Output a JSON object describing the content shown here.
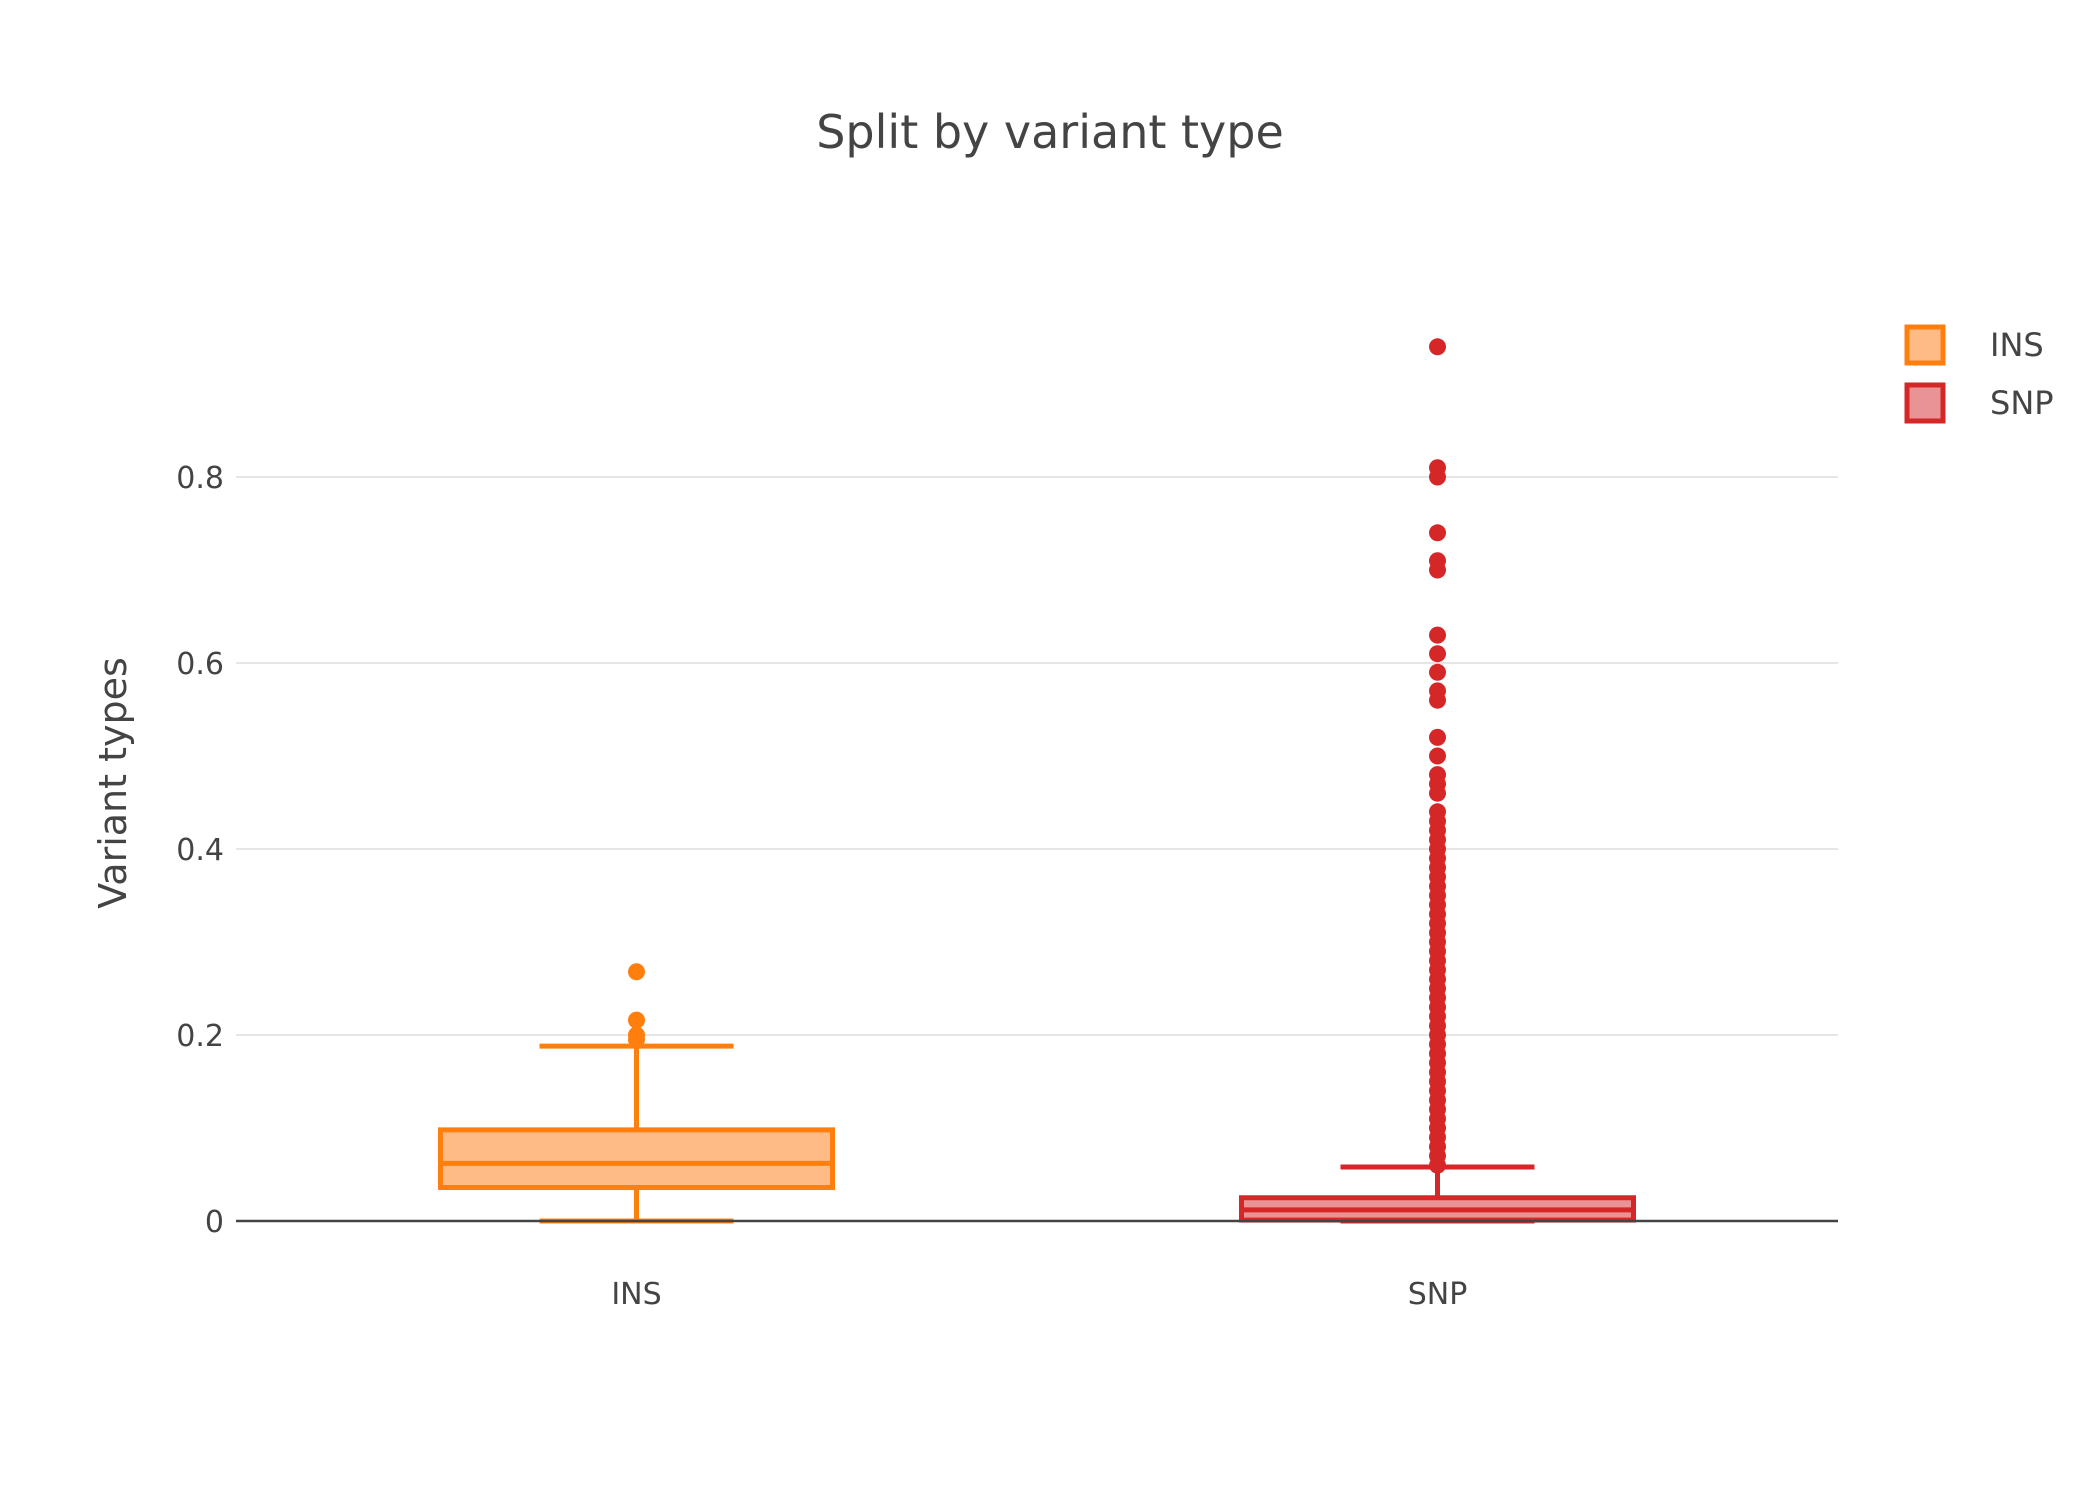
{
  "chart_data": {
    "type": "box",
    "title": "Split by variant type",
    "xlabel": "",
    "ylabel": "Variant types",
    "ylim": [
      0,
      1.0
    ],
    "yticks": [
      0,
      0.2,
      0.4,
      0.6,
      0.8
    ],
    "ytick_labels": [
      "0",
      "0.2",
      "0.4",
      "0.6",
      "0.8"
    ],
    "categories": [
      "INS",
      "SNP"
    ],
    "grid": true,
    "legend": "top-right",
    "series": [
      {
        "name": "INS",
        "color": "#ff7f0e",
        "fill": "#ffbb85",
        "min": 0.0,
        "q1": 0.036,
        "median": 0.062,
        "q3": 0.098,
        "max": 0.188,
        "outliers": [
          0.195,
          0.2,
          0.216,
          0.268
        ]
      },
      {
        "name": "SNP",
        "color": "#d62728",
        "fill": "#ea9394",
        "min": 0.0,
        "q1": 0.001,
        "median": 0.012,
        "q3": 0.025,
        "max": 0.058,
        "outliers": [
          0.06,
          0.07,
          0.08,
          0.09,
          0.1,
          0.11,
          0.12,
          0.13,
          0.14,
          0.15,
          0.16,
          0.17,
          0.18,
          0.19,
          0.2,
          0.21,
          0.22,
          0.23,
          0.24,
          0.25,
          0.26,
          0.27,
          0.28,
          0.29,
          0.3,
          0.31,
          0.32,
          0.33,
          0.34,
          0.35,
          0.36,
          0.37,
          0.38,
          0.39,
          0.4,
          0.41,
          0.42,
          0.43,
          0.44,
          0.46,
          0.47,
          0.48,
          0.5,
          0.52,
          0.56,
          0.57,
          0.59,
          0.61,
          0.63,
          0.7,
          0.71,
          0.74,
          0.8,
          0.81,
          0.94
        ]
      }
    ]
  }
}
